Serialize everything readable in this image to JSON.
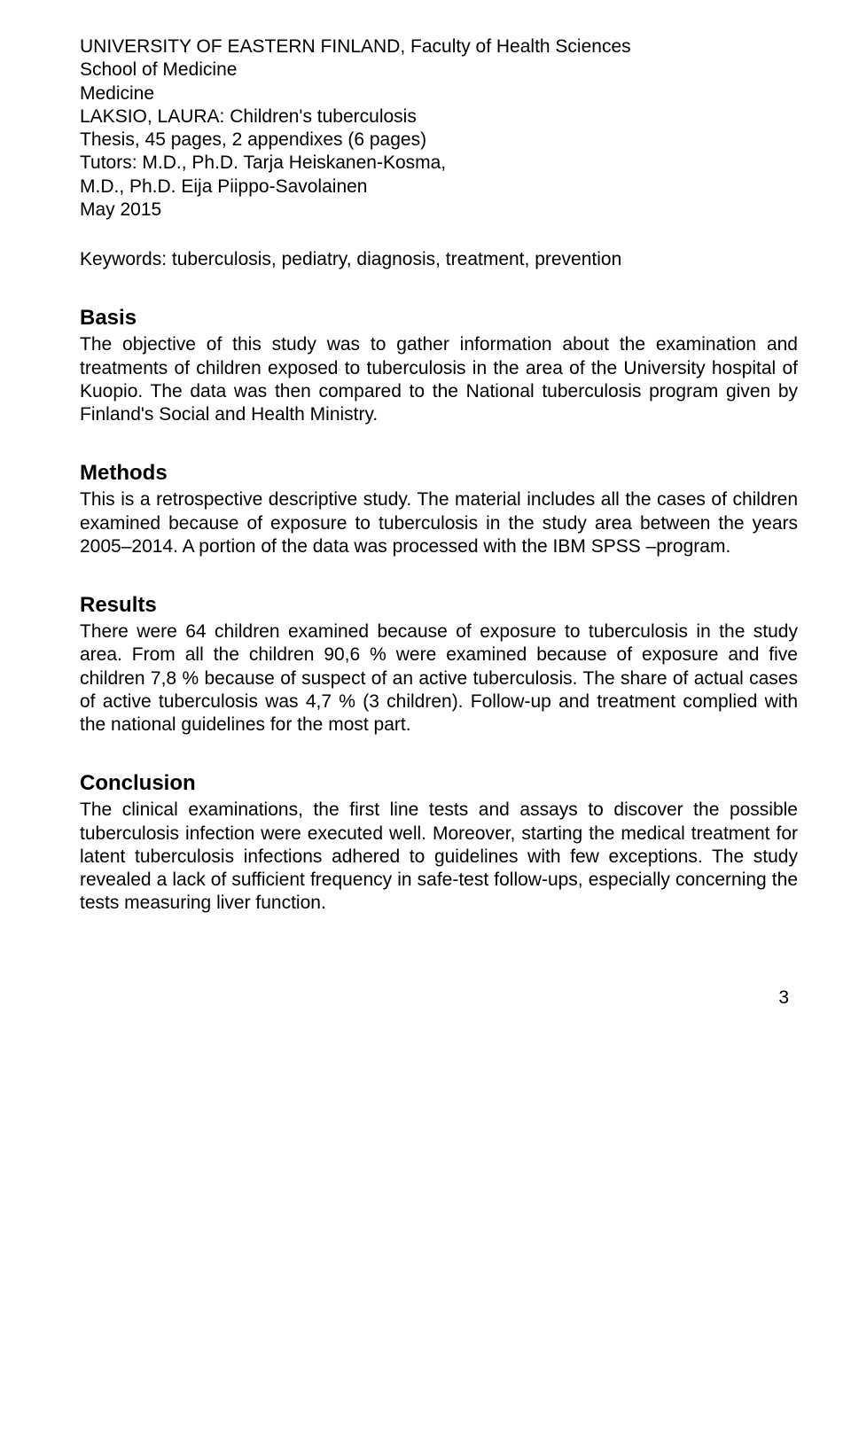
{
  "header": {
    "line1": "UNIVERSITY OF EASTERN FINLAND, Faculty of Health Sciences",
    "line2": "School of Medicine",
    "line3": "Medicine",
    "line4": "LAKSIO, LAURA: Children's tuberculosis",
    "line5": "Thesis, 45 pages, 2 appendixes (6 pages)",
    "line6": "Tutors: M.D., Ph.D. Tarja Heiskanen-Kosma,",
    "line7": "M.D., Ph.D. Eija Piippo-Savolainen",
    "line8": "May 2015",
    "keywords": "Keywords: tuberculosis, pediatry, diagnosis, treatment, prevention"
  },
  "sections": {
    "basis": {
      "heading": "Basis",
      "text": "The objective of this study was to gather information about the examination and treatments of children exposed to tuberculosis in the area of the University hospital of Kuopio. The data was then compared to the National tuberculosis program given by Finland's Social and Health Ministry."
    },
    "methods": {
      "heading": "Methods",
      "text": "This is a retrospective descriptive study. The material includes all the cases of children examined because of exposure to tuberculosis in the study area between the years 2005–2014. A portion of the data was processed with the IBM SPSS –program."
    },
    "results": {
      "heading": "Results",
      "text": "There were 64 children examined because of exposure to tuberculosis in the study area. From all the children 90,6 % were examined because of exposure and five children 7,8 % because of suspect of an active tuberculosis. The share of actual cases of active tuberculosis was 4,7 % (3 children). Follow-up and treatment complied with the national guidelines for the most part."
    },
    "conclusion": {
      "heading": "Conclusion",
      "text": "The clinical examinations, the first line tests and assays to discover the possible tuberculosis infection were executed well. Moreover, starting the medical treatment for latent tuberculosis infections adhered to guidelines with few exceptions. The study revealed a lack of sufficient frequency in safe-test follow-ups, especially concerning the tests measuring liver function."
    }
  },
  "pageNumber": "3"
}
